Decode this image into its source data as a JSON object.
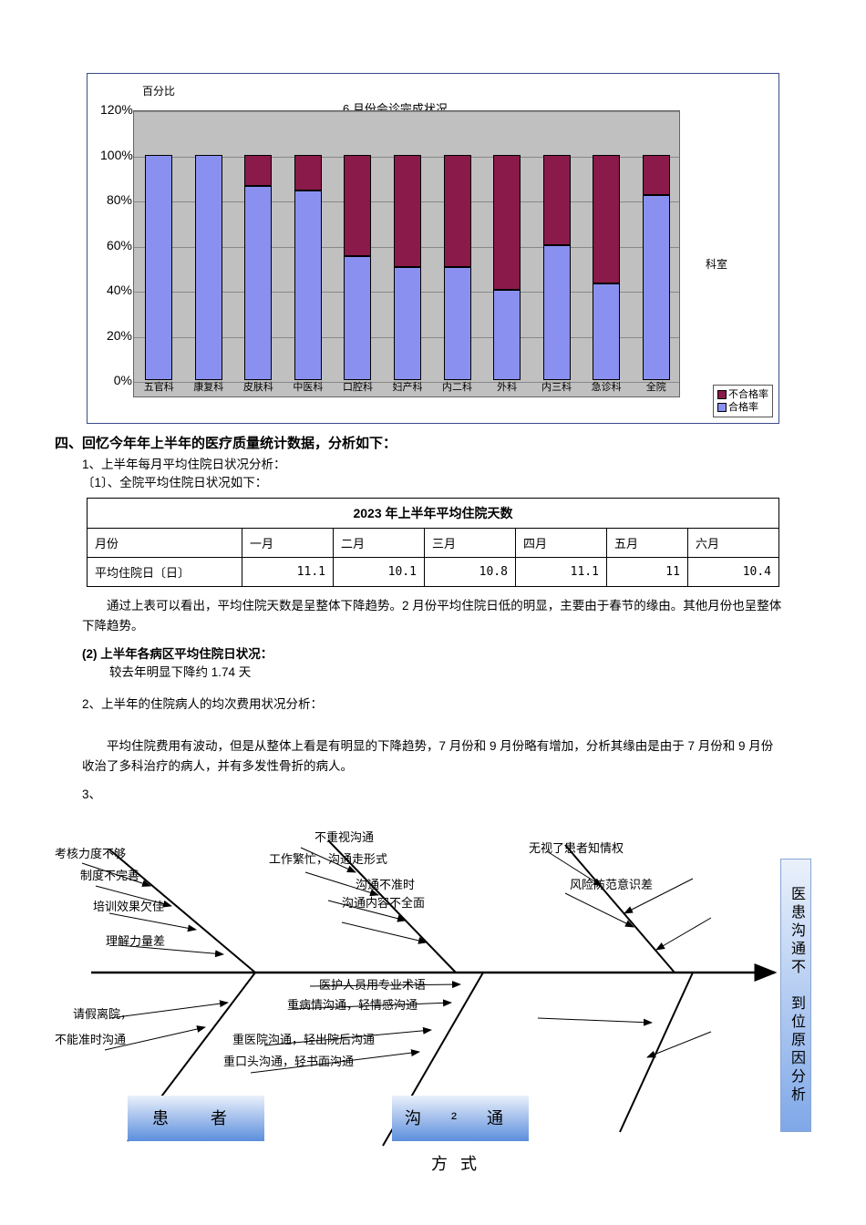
{
  "chart": {
    "type": "stacked-bar",
    "title": "6 月份会诊完成状况",
    "ylabel": "百分比",
    "right_axis_label": "科室",
    "background_color": "#c0c0c0",
    "grid_color": "#888888",
    "frame_color": "#3a4a8a",
    "ylim": [
      0,
      120
    ],
    "ytick_step": 20,
    "yticks": [
      "0%",
      "20%",
      "40%",
      "60%",
      "80%",
      "100%",
      "120%"
    ],
    "categories": [
      "五官科",
      "康复科",
      "皮肤科",
      "中医科",
      "口腔科",
      "妇产科",
      "内二科",
      "外科",
      "内三科",
      "急诊科",
      "全院"
    ],
    "series": [
      {
        "name": "合格率",
        "color": "#8a90f0",
        "border": "#000000",
        "values": [
          100,
          100,
          86,
          84,
          55,
          50,
          50,
          40,
          60,
          43,
          82
        ]
      },
      {
        "name": "不合格率",
        "color": "#8a1a4a",
        "border": "#000000",
        "values": [
          0,
          0,
          14,
          16,
          45,
          50,
          50,
          60,
          40,
          57,
          18
        ]
      }
    ],
    "bar_width": 0.55,
    "legend_position": "bottom-right",
    "legend": [
      "不合格率",
      "合格率"
    ]
  },
  "section4": {
    "heading": "四、回忆今年年上半年的医疗质量统计数据，分析如下：",
    "item1": "1、上半年每月平均住院日状况分析：",
    "item1_1": "〔1〕、全院平均住院日状况如下：",
    "table": {
      "caption_year": "2023",
      "caption_rest": " 年上半年平均住院天数",
      "columns": [
        "月份",
        "一月",
        "二月",
        "三月",
        "四月",
        "五月",
        "六月"
      ],
      "row_label": "平均住院日〔日〕",
      "values": [
        "11.1",
        "10.1",
        "10.8",
        "11.1",
        "11",
        "10.4"
      ]
    },
    "para1": "通过上表可以看出，平均住院天数是呈整体下降趋势。2 月份平均住院日低的明显，主要由于春节的缘由。其他月份也呈整体下降趋势。",
    "item1_2": "(2) 上半年各病区平均住院日状况：",
    "item1_2_detail": "较去年明显下降约 1.74 天",
    "item2": "2、上半年的住院病人的均次费用状况分析：",
    "para2": "平均住院费用有波动，但是从整体上看是有明显的下降趋势，7 月份和 9 月份略有增加，分析其缘由是由于 7 月份和 9 月份收治了多科治疗的病人，并有多发性骨折的病人。",
    "item3": "3、"
  },
  "fishbone": {
    "result": "医患沟通不　到位原因分析",
    "categories": {
      "left": "患　者",
      "right": "沟 ² 通方式"
    },
    "branches_top_left": [
      "考核力度不够",
      "制度不完善",
      "培训效果欠佳",
      "理解力量差"
    ],
    "branches_top_mid": [
      "不重视沟通",
      "工作繁忙，沟通走形式",
      "沟通不准时",
      "沟通内容不全面"
    ],
    "branches_top_right": [
      "无视了患者知情权",
      "风险防范意识差"
    ],
    "branches_bottom_left": [
      "请假离院，",
      "不能准时沟通"
    ],
    "branches_bottom_mid": [
      "医护人员用专业术语",
      "重病情沟通，轻情感沟通",
      "重医院沟通，轻出院后沟通",
      "重口头沟通，轻书面沟通"
    ],
    "colors": {
      "block_gradient_top": "#eaf1fb",
      "block_gradient_bottom": "#5b8edc",
      "line": "#000000"
    }
  }
}
